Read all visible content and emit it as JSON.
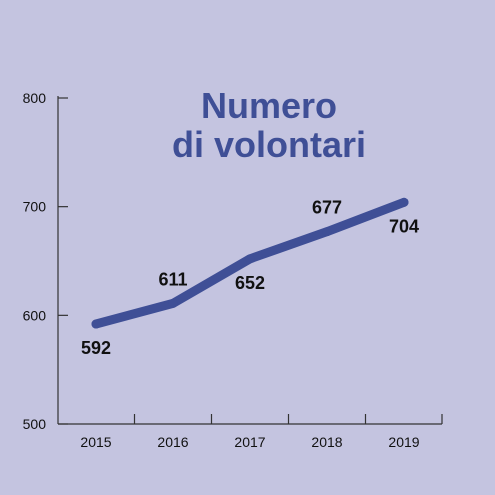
{
  "chart_data": {
    "type": "line",
    "title_lines": [
      "Numero",
      "di volontari"
    ],
    "xlabel": "",
    "ylabel": "",
    "categories": [
      "2015",
      "2016",
      "2017",
      "2018",
      "2019"
    ],
    "series": [
      {
        "values": [
          592,
          611,
          652,
          677,
          704
        ]
      }
    ],
    "ylim": [
      500,
      800
    ],
    "yticks": [
      500,
      600,
      700,
      800
    ],
    "grid": false,
    "legend": "none"
  },
  "colors": {
    "background": "#c4c4e0",
    "line": "#3f4f96",
    "title": "#3f4f96",
    "axis": "#333333",
    "text": "#111111"
  }
}
